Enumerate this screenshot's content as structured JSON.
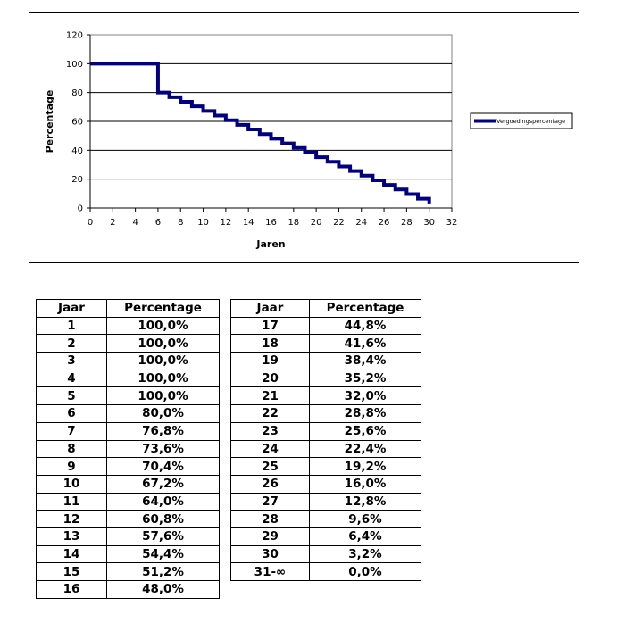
{
  "chart_data": {
    "type": "line",
    "title": "",
    "xlabel": "Jaren",
    "ylabel": "Percentage",
    "xlim": [
      0,
      32
    ],
    "ylim": [
      0,
      120
    ],
    "xticks": [
      0,
      2,
      4,
      6,
      8,
      10,
      12,
      14,
      16,
      18,
      20,
      22,
      24,
      26,
      28,
      30,
      32
    ],
    "yticks": [
      0,
      20,
      40,
      60,
      80,
      100,
      120
    ],
    "grid": "horizontal",
    "legend_position": "right",
    "series": [
      {
        "name": "Vergoedingspercentage",
        "color": "#000080",
        "step": true,
        "x": [
          0,
          5,
          6,
          7,
          8,
          9,
          10,
          11,
          12,
          13,
          14,
          15,
          16,
          17,
          18,
          19,
          20,
          21,
          22,
          23,
          24,
          25,
          26,
          27,
          28,
          29,
          30
        ],
        "values": [
          100,
          100,
          80,
          76.8,
          73.6,
          70.4,
          67.2,
          64,
          60.8,
          57.6,
          54.4,
          51.2,
          48,
          44.8,
          41.6,
          38.4,
          35.2,
          32,
          28.8,
          25.6,
          22.4,
          19.2,
          16,
          12.8,
          9.6,
          6.4,
          3.2
        ]
      }
    ]
  },
  "tables": {
    "left": {
      "headers": [
        "Jaar",
        "Percentage"
      ],
      "rows": [
        [
          "1",
          "100,0%"
        ],
        [
          "2",
          "100,0%"
        ],
        [
          "3",
          "100,0%"
        ],
        [
          "4",
          "100,0%"
        ],
        [
          "5",
          "100,0%"
        ],
        [
          "6",
          "80,0%"
        ],
        [
          "7",
          "76,8%"
        ],
        [
          "8",
          "73,6%"
        ],
        [
          "9",
          "70,4%"
        ],
        [
          "10",
          "67,2%"
        ],
        [
          "11",
          "64,0%"
        ],
        [
          "12",
          "60,8%"
        ],
        [
          "13",
          "57,6%"
        ],
        [
          "14",
          "54,4%"
        ],
        [
          "15",
          "51,2%"
        ],
        [
          "16",
          "48,0%"
        ]
      ]
    },
    "right": {
      "headers": [
        "Jaar",
        "Percentage"
      ],
      "rows": [
        [
          "17",
          "44,8%"
        ],
        [
          "18",
          "41,6%"
        ],
        [
          "19",
          "38,4%"
        ],
        [
          "20",
          "35,2%"
        ],
        [
          "21",
          "32,0%"
        ],
        [
          "22",
          "28,8%"
        ],
        [
          "23",
          "25,6%"
        ],
        [
          "24",
          "22,4%"
        ],
        [
          "25",
          "19,2%"
        ],
        [
          "26",
          "16,0%"
        ],
        [
          "27",
          "12,8%"
        ],
        [
          "28",
          "9,6%"
        ],
        [
          "29",
          "6,4%"
        ],
        [
          "30",
          "3,2%"
        ],
        [
          "31-∞",
          "0,0%"
        ]
      ]
    }
  }
}
